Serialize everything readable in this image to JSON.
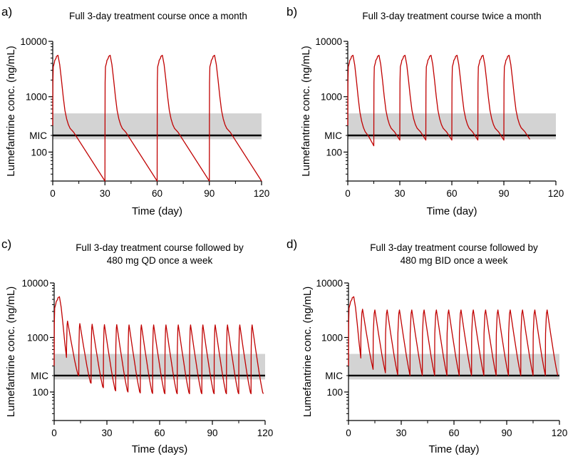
{
  "chart_data": [
    {
      "type": "line",
      "panel_label": "a)",
      "title": [
        "Full 3-day treatment course once a month"
      ],
      "xlabel": "Time (day)",
      "ylabel": "Lumefantrine conc. (ng/mL)",
      "xlim": [
        0,
        120
      ],
      "xticks": [
        "0",
        "30",
        "60",
        "90",
        "120"
      ],
      "xtick_values": [
        0,
        30,
        60,
        90,
        120
      ],
      "yscale": "log",
      "ylim": [
        30,
        10000
      ],
      "yticks": [
        "10000",
        "1000",
        "100"
      ],
      "ytick_values": [
        10000,
        1000,
        100
      ],
      "mic": {
        "label": "MIC",
        "value": 200
      },
      "mic_range": [
        170,
        500
      ],
      "line_color": "#c00000",
      "series": [
        {
          "name": "Lumefantrine",
          "cycles": [
            {
              "kind": "course",
              "start": 0,
              "end": 30,
              "start_conc": 300,
              "peak": 5600,
              "trough": 30
            },
            {
              "kind": "course",
              "start": 30,
              "end": 60,
              "start_conc": 30,
              "peak": 5600,
              "trough": 30
            },
            {
              "kind": "course",
              "start": 60,
              "end": 90,
              "start_conc": 30,
              "peak": 5600,
              "trough": 30
            },
            {
              "kind": "course",
              "start": 90,
              "end": 120,
              "start_conc": 30,
              "peak": 5600,
              "trough": 30
            }
          ]
        }
      ]
    },
    {
      "type": "line",
      "panel_label": "b)",
      "title": [
        "Full 3-day treatment course twice a month"
      ],
      "xlabel": "Time (day)",
      "ylabel": "Lumefantrine conc. (ng/mL)",
      "xlim": [
        0,
        120
      ],
      "xticks": [
        "0",
        "30",
        "60",
        "90",
        "120"
      ],
      "xtick_values": [
        0,
        30,
        60,
        90,
        120
      ],
      "yscale": "log",
      "ylim": [
        30,
        10000
      ],
      "yticks": [
        "10000",
        "1000",
        "100"
      ],
      "ytick_values": [
        10000,
        1000,
        100
      ],
      "mic": {
        "label": "MIC",
        "value": 200
      },
      "mic_range": [
        170,
        500
      ],
      "line_color": "#c00000",
      "series": [
        {
          "name": "Lumefantrine",
          "cycles": [
            {
              "kind": "course",
              "start": 0,
              "end": 15,
              "start_conc": 300,
              "peak": 5600,
              "trough": 130
            },
            {
              "kind": "course",
              "start": 15,
              "end": 30,
              "start_conc": 130,
              "peak": 5600,
              "trough": 165
            },
            {
              "kind": "course",
              "start": 30,
              "end": 45,
              "start_conc": 165,
              "peak": 5600,
              "trough": 165
            },
            {
              "kind": "course",
              "start": 45,
              "end": 60,
              "start_conc": 165,
              "peak": 5600,
              "trough": 165
            },
            {
              "kind": "course",
              "start": 60,
              "end": 75,
              "start_conc": 165,
              "peak": 5600,
              "trough": 165
            },
            {
              "kind": "course",
              "start": 75,
              "end": 90,
              "start_conc": 165,
              "peak": 5600,
              "trough": 165
            },
            {
              "kind": "course",
              "start": 90,
              "end": 105,
              "start_conc": 165,
              "peak": 5600,
              "trough": 170
            }
          ]
        }
      ]
    },
    {
      "type": "line",
      "panel_label": "c)",
      "title": [
        "Full 3-day treatment course followed by",
        "480 mg QD once a week"
      ],
      "xlabel": "Time (days)",
      "ylabel": "Lumefantrine conc. (ng/mL)",
      "xlim": [
        0,
        120
      ],
      "xticks": [
        "0",
        "30",
        "60",
        "90",
        "120"
      ],
      "xtick_values": [
        0,
        30,
        60,
        90,
        120
      ],
      "yscale": "log",
      "ylim": [
        30,
        10000
      ],
      "yticks": [
        "10000",
        "1000",
        "100"
      ],
      "ytick_values": [
        10000,
        1000,
        100
      ],
      "mic": {
        "label": "MIC",
        "value": 200
      },
      "mic_range": [
        170,
        500
      ],
      "line_color": "#c00000",
      "series": [
        {
          "name": "Lumefantrine",
          "cycles": [
            {
              "kind": "course",
              "start": 0,
              "end": 7,
              "start_conc": 300,
              "peak": 5600,
              "trough": 430
            },
            {
              "kind": "qd",
              "start": 7,
              "end": 14,
              "start_conc": 430,
              "peak": 2000,
              "trough": 200
            },
            {
              "kind": "qd",
              "start": 14,
              "end": 21,
              "start_conc": 200,
              "peak": 1800,
              "trough": 145
            },
            {
              "kind": "qd",
              "start": 21,
              "end": 28,
              "start_conc": 145,
              "peak": 1750,
              "trough": 120
            },
            {
              "kind": "qd",
              "start": 28,
              "end": 35,
              "start_conc": 120,
              "peak": 1720,
              "trough": 105
            },
            {
              "kind": "qd",
              "start": 35,
              "end": 42,
              "start_conc": 105,
              "peak": 1720,
              "trough": 100
            },
            {
              "kind": "qd",
              "start": 42,
              "end": 49,
              "start_conc": 100,
              "peak": 1700,
              "trough": 96
            },
            {
              "kind": "qd",
              "start": 49,
              "end": 56,
              "start_conc": 96,
              "peak": 1700,
              "trough": 94
            },
            {
              "kind": "qd",
              "start": 56,
              "end": 63,
              "start_conc": 94,
              "peak": 1700,
              "trough": 93
            },
            {
              "kind": "qd",
              "start": 63,
              "end": 70,
              "start_conc": 93,
              "peak": 1700,
              "trough": 93
            },
            {
              "kind": "qd",
              "start": 70,
              "end": 77,
              "start_conc": 93,
              "peak": 1700,
              "trough": 93
            },
            {
              "kind": "qd",
              "start": 77,
              "end": 84,
              "start_conc": 93,
              "peak": 1700,
              "trough": 93
            },
            {
              "kind": "qd",
              "start": 84,
              "end": 91,
              "start_conc": 93,
              "peak": 1700,
              "trough": 93
            },
            {
              "kind": "qd",
              "start": 91,
              "end": 98,
              "start_conc": 93,
              "peak": 1700,
              "trough": 93
            },
            {
              "kind": "qd",
              "start": 98,
              "end": 105,
              "start_conc": 93,
              "peak": 1700,
              "trough": 93
            },
            {
              "kind": "qd",
              "start": 105,
              "end": 112,
              "start_conc": 93,
              "peak": 1700,
              "trough": 93
            },
            {
              "kind": "qd",
              "start": 112,
              "end": 119,
              "start_conc": 93,
              "peak": 1700,
              "trough": 93
            }
          ]
        }
      ]
    },
    {
      "type": "line",
      "panel_label": "d)",
      "title": [
        "Full 3-day treatment course followed by",
        "480 mg BID once a week"
      ],
      "xlabel": "Time (day)",
      "ylabel": "Lumefantrine conc. (ng/mL)",
      "xlim": [
        0,
        120
      ],
      "xticks": [
        "0",
        "30",
        "60",
        "90",
        "120"
      ],
      "xtick_values": [
        0,
        30,
        60,
        90,
        120
      ],
      "yscale": "log",
      "ylim": [
        30,
        10000
      ],
      "yticks": [
        "10000",
        "1000",
        "100"
      ],
      "ytick_values": [
        10000,
        1000,
        100
      ],
      "mic": {
        "label": "MIC",
        "value": 200
      },
      "mic_range": [
        170,
        500
      ],
      "line_color": "#c00000",
      "series": [
        {
          "name": "Lumefantrine",
          "cycles": [
            {
              "kind": "course",
              "start": 0,
              "end": 7,
              "start_conc": 300,
              "peak": 5600,
              "trough": 420
            },
            {
              "kind": "bid",
              "start": 7,
              "end": 14,
              "start_conc": 420,
              "peak": 3300,
              "trough": 260
            },
            {
              "kind": "bid",
              "start": 14,
              "end": 21,
              "start_conc": 260,
              "peak": 3200,
              "trough": 225
            },
            {
              "kind": "bid",
              "start": 21,
              "end": 28,
              "start_conc": 225,
              "peak": 3200,
              "trough": 205
            },
            {
              "kind": "bid",
              "start": 28,
              "end": 35,
              "start_conc": 205,
              "peak": 3200,
              "trough": 200
            },
            {
              "kind": "bid",
              "start": 35,
              "end": 42,
              "start_conc": 200,
              "peak": 3200,
              "trough": 200
            },
            {
              "kind": "bid",
              "start": 42,
              "end": 49,
              "start_conc": 200,
              "peak": 3200,
              "trough": 200
            },
            {
              "kind": "bid",
              "start": 49,
              "end": 56,
              "start_conc": 200,
              "peak": 3200,
              "trough": 200
            },
            {
              "kind": "bid",
              "start": 56,
              "end": 63,
              "start_conc": 200,
              "peak": 3200,
              "trough": 200
            },
            {
              "kind": "bid",
              "start": 63,
              "end": 70,
              "start_conc": 200,
              "peak": 3200,
              "trough": 200
            },
            {
              "kind": "bid",
              "start": 70,
              "end": 77,
              "start_conc": 200,
              "peak": 3200,
              "trough": 200
            },
            {
              "kind": "bid",
              "start": 77,
              "end": 84,
              "start_conc": 200,
              "peak": 3200,
              "trough": 200
            },
            {
              "kind": "bid",
              "start": 84,
              "end": 91,
              "start_conc": 200,
              "peak": 3200,
              "trough": 200
            },
            {
              "kind": "bid",
              "start": 91,
              "end": 98,
              "start_conc": 200,
              "peak": 3200,
              "trough": 200
            },
            {
              "kind": "bid",
              "start": 98,
              "end": 105,
              "start_conc": 200,
              "peak": 3200,
              "trough": 200
            },
            {
              "kind": "bid",
              "start": 105,
              "end": 112,
              "start_conc": 200,
              "peak": 3200,
              "trough": 200
            },
            {
              "kind": "bid",
              "start": 112,
              "end": 119,
              "start_conc": 200,
              "peak": 3200,
              "trough": 200
            }
          ]
        }
      ]
    }
  ]
}
